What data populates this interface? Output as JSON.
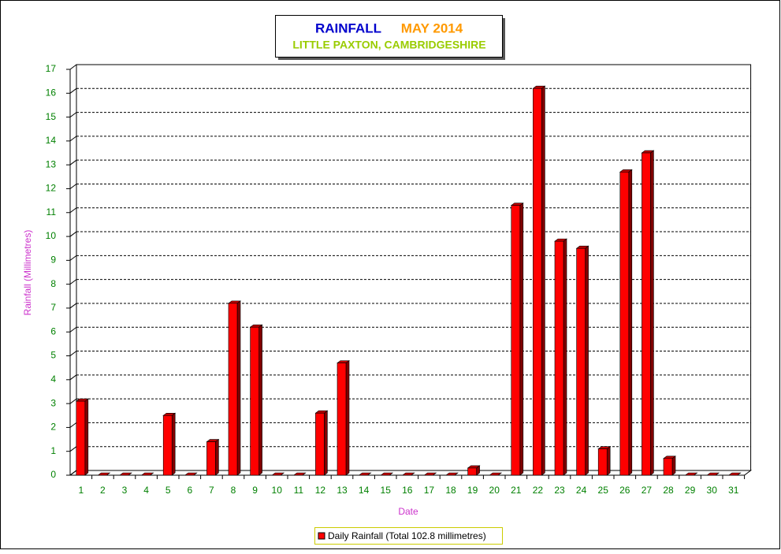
{
  "chart_data": {
    "type": "bar3d",
    "title": "RAINFALL",
    "title_period": "MAY 2014",
    "subtitle": "LITTLE PAXTON, CAMBRIDGESHIRE",
    "x_label": "Date",
    "y_label": "Rainfall  (Millimetres)",
    "categories": [
      "1",
      "2",
      "3",
      "4",
      "5",
      "6",
      "7",
      "8",
      "9",
      "10",
      "11",
      "12",
      "13",
      "14",
      "15",
      "16",
      "17",
      "18",
      "19",
      "20",
      "21",
      "22",
      "23",
      "24",
      "25",
      "26",
      "27",
      "28",
      "29",
      "30",
      "31"
    ],
    "series": [
      {
        "name": "Daily Rainfall (Total 102.8 millimetres)",
        "color": "#ff0000",
        "values": [
          3.1,
          0,
          0,
          0,
          2.5,
          0,
          1.4,
          7.2,
          6.2,
          0,
          0,
          2.6,
          4.7,
          0,
          0,
          0,
          0,
          0,
          0.3,
          0,
          11.3,
          16.2,
          9.8,
          9.5,
          1.1,
          12.7,
          13.5,
          0.7,
          0,
          0,
          0
        ]
      }
    ],
    "ylim": [
      0,
      17
    ],
    "yticks": [
      0,
      1,
      2,
      3,
      4,
      5,
      6,
      7,
      8,
      9,
      10,
      11,
      12,
      13,
      14,
      15,
      16,
      17
    ],
    "grid": true
  }
}
